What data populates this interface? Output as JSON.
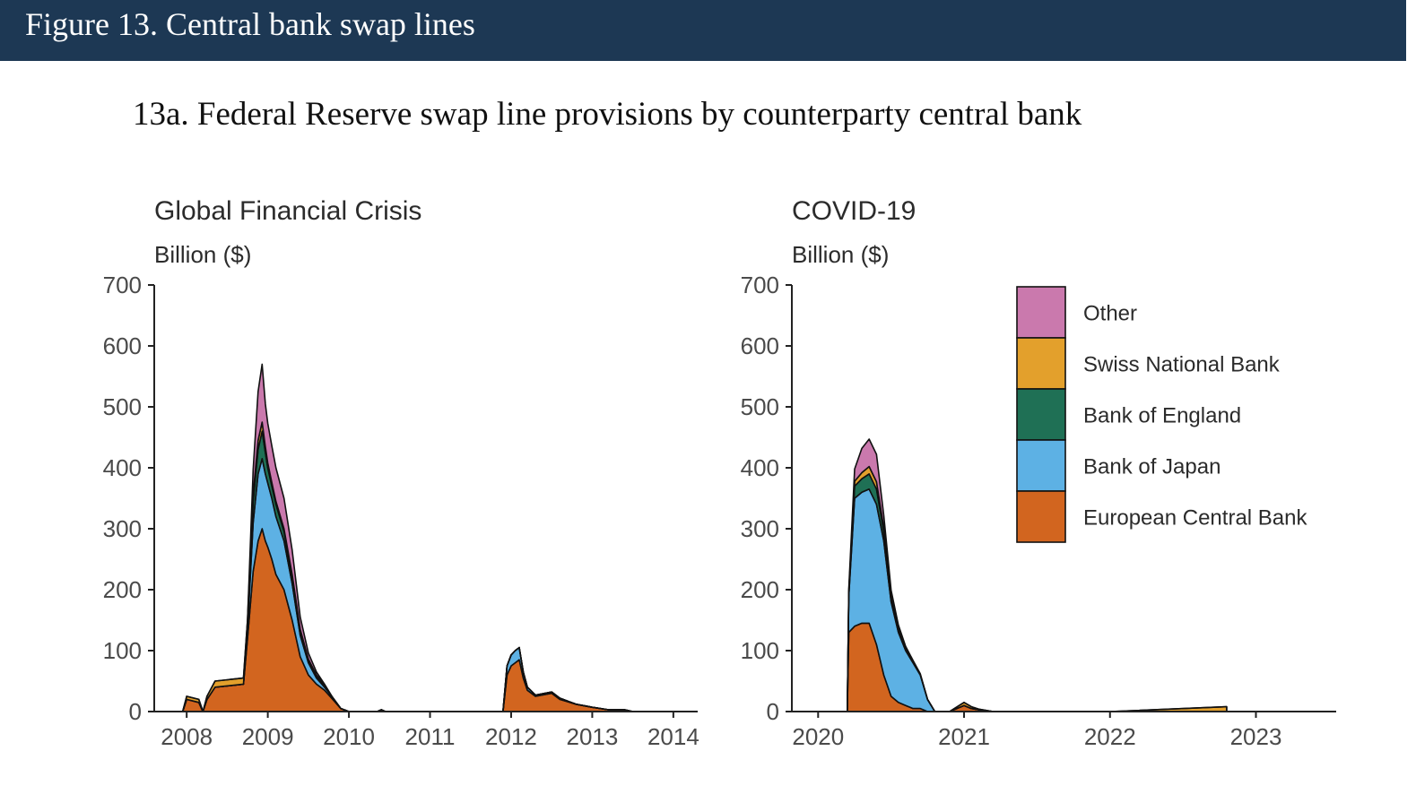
{
  "figure_title": "Figure 13. Central bank swap lines",
  "panel_title": "13a. Federal Reserve swap line provisions by counterparty central bank",
  "colors": {
    "banner": "#1d3854",
    "European Central Bank": "#d2651f",
    "Bank of Japan": "#5db1e4",
    "Bank of England": "#1f7055",
    "Swiss National Bank": "#e3a02c",
    "Other": "#ca79ad"
  },
  "chart_data": [
    {
      "type": "area",
      "title": "Global Financial Crisis",
      "ylabel": "Billion ($)",
      "ylim": [
        0,
        700
      ],
      "xlim": [
        2007.6,
        2014.3
      ],
      "yticks": [
        0,
        100,
        200,
        300,
        400,
        500,
        600,
        700
      ],
      "xticks": [
        2008,
        2009,
        2010,
        2011,
        2012,
        2013,
        2014
      ],
      "x": [
        2007.95,
        2008.0,
        2008.15,
        2008.2,
        2008.25,
        2008.35,
        2008.7,
        2008.75,
        2008.82,
        2008.88,
        2008.93,
        2008.97,
        2009.0,
        2009.05,
        2009.1,
        2009.2,
        2009.3,
        2009.4,
        2009.5,
        2009.6,
        2009.7,
        2009.8,
        2009.9,
        2010.0,
        2010.05,
        2010.35,
        2010.4,
        2010.45,
        2011.0,
        2011.9,
        2011.95,
        2012.0,
        2012.05,
        2012.1,
        2012.15,
        2012.2,
        2012.3,
        2012.5,
        2012.6,
        2012.8,
        2013.0,
        2013.2,
        2013.4,
        2013.5,
        2013.7,
        2014.0
      ],
      "series": [
        {
          "name": "European Central Bank",
          "values": [
            0,
            20,
            15,
            0,
            20,
            40,
            45,
            120,
            230,
            280,
            300,
            280,
            270,
            250,
            225,
            200,
            150,
            90,
            60,
            45,
            35,
            20,
            5,
            0,
            0,
            0,
            3,
            0,
            0,
            0,
            60,
            75,
            80,
            85,
            55,
            35,
            25,
            30,
            20,
            12,
            7,
            3,
            3,
            0,
            0,
            0
          ]
        },
        {
          "name": "Bank of Japan",
          "values": [
            0,
            0,
            0,
            0,
            0,
            0,
            0,
            15,
            80,
            110,
            115,
            110,
            105,
            100,
            95,
            80,
            60,
            35,
            20,
            10,
            5,
            3,
            0,
            0,
            0,
            0,
            0,
            0,
            0,
            0,
            15,
            18,
            20,
            20,
            10,
            5,
            2,
            2,
            2,
            0,
            0,
            0,
            0,
            0,
            0,
            0
          ]
        },
        {
          "name": "Bank of England",
          "values": [
            0,
            0,
            0,
            0,
            0,
            0,
            0,
            10,
            35,
            40,
            45,
            35,
            25,
            20,
            20,
            15,
            10,
            6,
            3,
            2,
            1,
            0,
            0,
            0,
            0,
            0,
            0,
            0,
            0,
            0,
            0,
            0,
            0,
            0,
            0,
            0,
            0,
            0,
            0,
            0,
            0,
            0,
            0,
            0,
            0,
            0
          ]
        },
        {
          "name": "Swiss National Bank",
          "values": [
            0,
            5,
            5,
            0,
            5,
            10,
            10,
            5,
            12,
            15,
            15,
            10,
            8,
            6,
            5,
            5,
            5,
            4,
            3,
            3,
            2,
            0,
            0,
            0,
            0,
            0,
            0,
            0,
            0,
            0,
            0,
            0,
            0,
            0,
            0,
            0,
            0,
            0,
            0,
            0,
            0,
            0,
            0,
            0,
            0,
            0
          ]
        },
        {
          "name": "Other",
          "values": [
            0,
            0,
            0,
            0,
            0,
            0,
            0,
            0,
            40,
            80,
            95,
            70,
            65,
            60,
            55,
            50,
            40,
            20,
            10,
            5,
            2,
            0,
            0,
            0,
            0,
            0,
            0,
            0,
            0,
            0,
            0,
            0,
            0,
            0,
            0,
            0,
            0,
            0,
            0,
            0,
            0,
            0,
            0,
            0,
            0,
            0
          ]
        }
      ]
    },
    {
      "type": "area",
      "title": "COVID-19",
      "ylabel": "Billion ($)",
      "ylim": [
        0,
        700
      ],
      "xlim": [
        2019.82,
        2023.55
      ],
      "yticks": [
        0,
        100,
        200,
        300,
        400,
        500,
        600,
        700
      ],
      "xticks": [
        2020,
        2021,
        2022,
        2023
      ],
      "legend_position": "top-right",
      "x": [
        2020.2,
        2020.21,
        2020.25,
        2020.3,
        2020.35,
        2020.4,
        2020.45,
        2020.5,
        2020.55,
        2020.6,
        2020.65,
        2020.7,
        2020.75,
        2020.8,
        2020.9,
        2021.0,
        2021.05,
        2021.1,
        2021.2,
        2021.5,
        2022.0,
        2022.8,
        2022.8,
        2022.8
      ],
      "series": [
        {
          "name": "European Central Bank",
          "values": [
            0,
            130,
            140,
            145,
            145,
            110,
            60,
            25,
            15,
            10,
            5,
            5,
            0,
            0,
            0,
            10,
            5,
            3,
            0,
            0,
            0,
            0,
            0,
            0
          ]
        },
        {
          "name": "Bank of Japan",
          "values": [
            0,
            60,
            210,
            215,
            220,
            230,
            220,
            155,
            115,
            90,
            75,
            55,
            20,
            0,
            0,
            0,
            0,
            0,
            0,
            0,
            0,
            0,
            0,
            0
          ]
        },
        {
          "name": "Bank of England",
          "values": [
            0,
            5,
            20,
            22,
            25,
            25,
            15,
            8,
            5,
            3,
            2,
            1,
            0,
            0,
            0,
            0,
            0,
            0,
            0,
            0,
            0,
            0,
            0,
            0
          ]
        },
        {
          "name": "Swiss National Bank",
          "values": [
            0,
            2,
            8,
            10,
            12,
            12,
            7,
            3,
            2,
            1,
            0,
            0,
            0,
            0,
            0,
            5,
            3,
            1,
            0,
            0,
            0,
            8,
            0,
            0
          ]
        },
        {
          "name": "Other",
          "values": [
            0,
            5,
            20,
            40,
            45,
            45,
            20,
            8,
            5,
            3,
            2,
            1,
            0,
            0,
            0,
            0,
            0,
            0,
            0,
            0,
            0,
            0,
            0,
            0
          ]
        }
      ]
    }
  ]
}
